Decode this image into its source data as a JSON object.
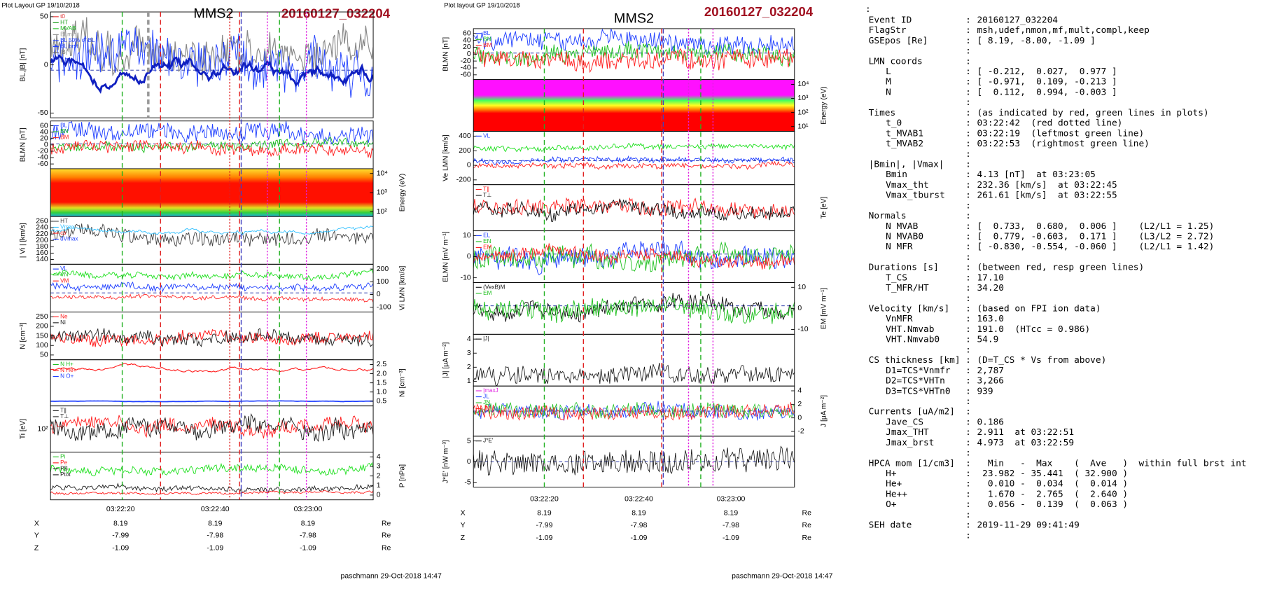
{
  "left_plot": {
    "header": "Plot Layout GP 19/10/2018",
    "title": "MMS2",
    "event": "20160127_032204",
    "panels": [
      {
        "label": "BL,|B| [nT]",
        "ticks": [
          "50",
          "0",
          "-50"
        ],
        "legend": [
          "t0",
          "HT",
          "MVAB",
          "BLmin",
          "BL 50% of BL",
          "BL brst",
          "|B|"
        ]
      },
      {
        "label": "BLMN [nT]",
        "ticks": [
          "60",
          "40",
          "20",
          "0",
          "-20",
          "-40",
          "-60"
        ],
        "legend": [
          "BL",
          "BN",
          "BM"
        ]
      },
      {
        "label": "Energy (eV)",
        "ticks": [
          "10⁴",
          "10³",
          "10²"
        ]
      },
      {
        "label": "| Vi | [km/s]",
        "ticks": [
          "260",
          "240",
          "220",
          "200",
          "180",
          "160",
          "140"
        ],
        "legend": [
          "HT",
          "Vmax",
          "cs",
          "dVmax"
        ]
      },
      {
        "label": "Vi LMN [km/s]",
        "ticks": [
          "200",
          "100",
          "0",
          "-100"
        ],
        "legend": [
          "VL",
          "VN",
          "VM"
        ]
      },
      {
        "label": "N [cm⁻³]",
        "ticks": [
          "250",
          "200",
          "150",
          "100",
          "50"
        ],
        "legend": [
          "Ne",
          "Ni"
        ]
      },
      {
        "label": "Ni [cm⁻³]",
        "ticks": [
          "2.5",
          "2.0",
          "1.5",
          "1.0",
          "0.5"
        ],
        "legend": [
          "N H+",
          "N He+",
          "N O+"
        ]
      },
      {
        "label": "Ti [eV]",
        "ticks": [
          "10²"
        ],
        "legend": [
          "T∥",
          "T⊥"
        ]
      },
      {
        "label": "P [nPa]",
        "ticks": [
          "4",
          "3",
          "2",
          "1",
          "0"
        ],
        "legend": [
          "Pi",
          "Pe",
          "PB",
          "Ptot"
        ]
      }
    ],
    "time_ticks": [
      "03:22:20",
      "03:22:40",
      "03:23:00"
    ],
    "position_rows": [
      [
        "X",
        "8.19",
        "8.19",
        "8.19",
        "Re"
      ],
      [
        "Y",
        "-7.99",
        "-7.98",
        "-7.98",
        "Re"
      ],
      [
        "Z",
        "-1.09",
        "-1.09",
        "-1.09",
        "Re"
      ]
    ],
    "footer": "paschmann 29-Oct-2018 14:47"
  },
  "middle_plot": {
    "header": "Plot layout GP 19/10/2018",
    "title": "MMS2",
    "event": "20160127_032204",
    "panels": [
      {
        "label": "BLMN [nT]",
        "ticks": [
          "60",
          "40",
          "20",
          "0",
          "-20",
          "-40",
          "-60"
        ],
        "legend": [
          "BL",
          "BN",
          "BM"
        ]
      },
      {
        "label": "Energy (eV)",
        "ticks": [
          "10⁴",
          "10³",
          "10²",
          "10¹"
        ]
      },
      {
        "label": "Ve LMN [km/s]",
        "ticks": [
          "400",
          "200",
          "0",
          "-200"
        ],
        "legend": [
          "VL"
        ]
      },
      {
        "label": "Te [eV]",
        "legend": [
          "T∥",
          "T⊥"
        ]
      },
      {
        "label": "ELMN [mV m⁻¹]",
        "ticks": [
          "10",
          "0",
          "-10"
        ],
        "legend": [
          "EL",
          "EN",
          "EM"
        ]
      },
      {
        "label": "EM [mV m⁻¹]",
        "ticks": [
          "10",
          "0",
          "-10"
        ],
        "legend": [
          "(VexB)M",
          "EM"
        ]
      },
      {
        "label": "|J| [μA m⁻²]",
        "ticks": [
          "4",
          "3",
          "2",
          "1"
        ],
        "legend": [
          "|J|"
        ]
      },
      {
        "label": "J [μA m⁻²]",
        "ticks": [
          "4",
          "2",
          "0",
          "-2"
        ],
        "legend": [
          "|maxJ",
          "JL",
          "JN",
          "JM"
        ]
      },
      {
        "label": "J*E' [nW m⁻³]",
        "ticks": [
          "5",
          "0",
          "-5"
        ],
        "legend": [
          "J*E'"
        ]
      }
    ],
    "time_ticks": [
      "03:22:20",
      "03:22:40",
      "03:23:00"
    ],
    "position_rows": [
      [
        "X",
        "8.19",
        "8.19",
        "8.19",
        "Re"
      ],
      [
        "Y",
        "-7.99",
        "-7.98",
        "-7.98",
        "Re"
      ],
      [
        "Z",
        "-1.09",
        "-1.09",
        "-1.09",
        "Re"
      ]
    ],
    "footer": "paschmann 29-Oct-2018 14:47"
  },
  "info": {
    "sections": [
      {
        "rows": [
          [
            "Event ID",
            "20160127_032204"
          ],
          [
            "FlagStr",
            "msh,udef,nmon,mf,mult,compl,keep"
          ],
          [
            "GSEpos [Re]",
            "[ 8.19, -8.00, -1.09 ]"
          ]
        ]
      },
      {
        "heading": [
          "LMN coords"
        ],
        "rows": [
          [
            "L",
            "[ -0.212,  0.027,  0.977 ]"
          ],
          [
            "M",
            "[ -0.971,  0.109, -0.213 ]"
          ],
          [
            "N",
            "[  0.112,  0.994, -0.003 ]"
          ]
        ]
      },
      {
        "heading": [
          "Times",
          "(as indicated by red, green lines in plots)"
        ],
        "rows": [
          [
            "t_0",
            "03:22:42  (red dotted line)"
          ],
          [
            "t_MVAB1",
            "03:22:19  (leftmost green line)"
          ],
          [
            "t_MVAB2",
            "03:22:53  (rightmost green line)"
          ]
        ]
      },
      {
        "heading": [
          "|Bmin|, |Vmax|"
        ],
        "rows": [
          [
            "Bmin",
            "4.13 [nT]  at 03:23:05"
          ],
          [
            "Vmax_tht",
            "232.36 [km/s]  at 03:22:45"
          ],
          [
            "Vmax_tburst",
            "261.61 [km/s]  at 03:22:55"
          ]
        ]
      },
      {
        "heading": [
          "Normals"
        ],
        "rows": [
          [
            "N MVAB",
            "[  0.733,  0.680,  0.006 ]    (L2/L1 = 1.25)"
          ],
          [
            "N MVAB0",
            "[  0.779, -0.603,  0.171 ]    (L3/L2 = 2.72)"
          ],
          [
            "N MFR",
            "[ -0.830, -0.554, -0.060 ]    (L2/L1 = 1.42)"
          ]
        ]
      },
      {
        "heading": [
          "Durations [s]",
          "(between red, resp green lines)"
        ],
        "rows": [
          [
            "T_CS",
            "17.10"
          ],
          [
            "T_MFR/HT",
            "34.20"
          ]
        ]
      },
      {
        "heading": [
          "Velocity [km/s]",
          "(based on FPI ion data)"
        ],
        "rows": [
          [
            "VnMFR",
            "163.0"
          ],
          [
            "VHT.Nmvab",
            "191.0  (HTcc = 0.986)"
          ],
          [
            "VHT.Nmvab0",
            "54.9"
          ]
        ]
      },
      {
        "heading": [
          "CS thickness [km]",
          "(D=T_CS * Vs from above)"
        ],
        "rows": [
          [
            "D1=TCS*Vnmfr",
            "2,787"
          ],
          [
            "D2=TCS*VHTn",
            "3,266"
          ],
          [
            "D3=TCS*VHTn0",
            "939"
          ]
        ]
      },
      {
        "heading": [
          "Currents [uA/m2]"
        ],
        "rows": [
          [
            "Jave_CS",
            "0.186"
          ],
          [
            "Jmax_THT",
            "2.911  at 03:22:51"
          ],
          [
            "Jmax_brst",
            "4.973  at 03:22:59"
          ]
        ]
      },
      {
        "heading": [
          "HPCA mom [1/cm3]",
          "  Min   -  Max    (  Ave   )  within full brst int"
        ],
        "rows": [
          [
            "H+",
            " 23.982 - 35.441  ( 32.900 )"
          ],
          [
            "He+",
            "  0.010 -  0.034  (  0.014 )"
          ],
          [
            "He++",
            "  1.670 -  2.765  (  2.640 )"
          ],
          [
            "O+",
            "  0.056 -  0.139  (  0.063 )"
          ]
        ]
      },
      {
        "heading": [
          "SEH date",
          "2019-11-29 09:41:49"
        ],
        "rows": []
      }
    ]
  }
}
